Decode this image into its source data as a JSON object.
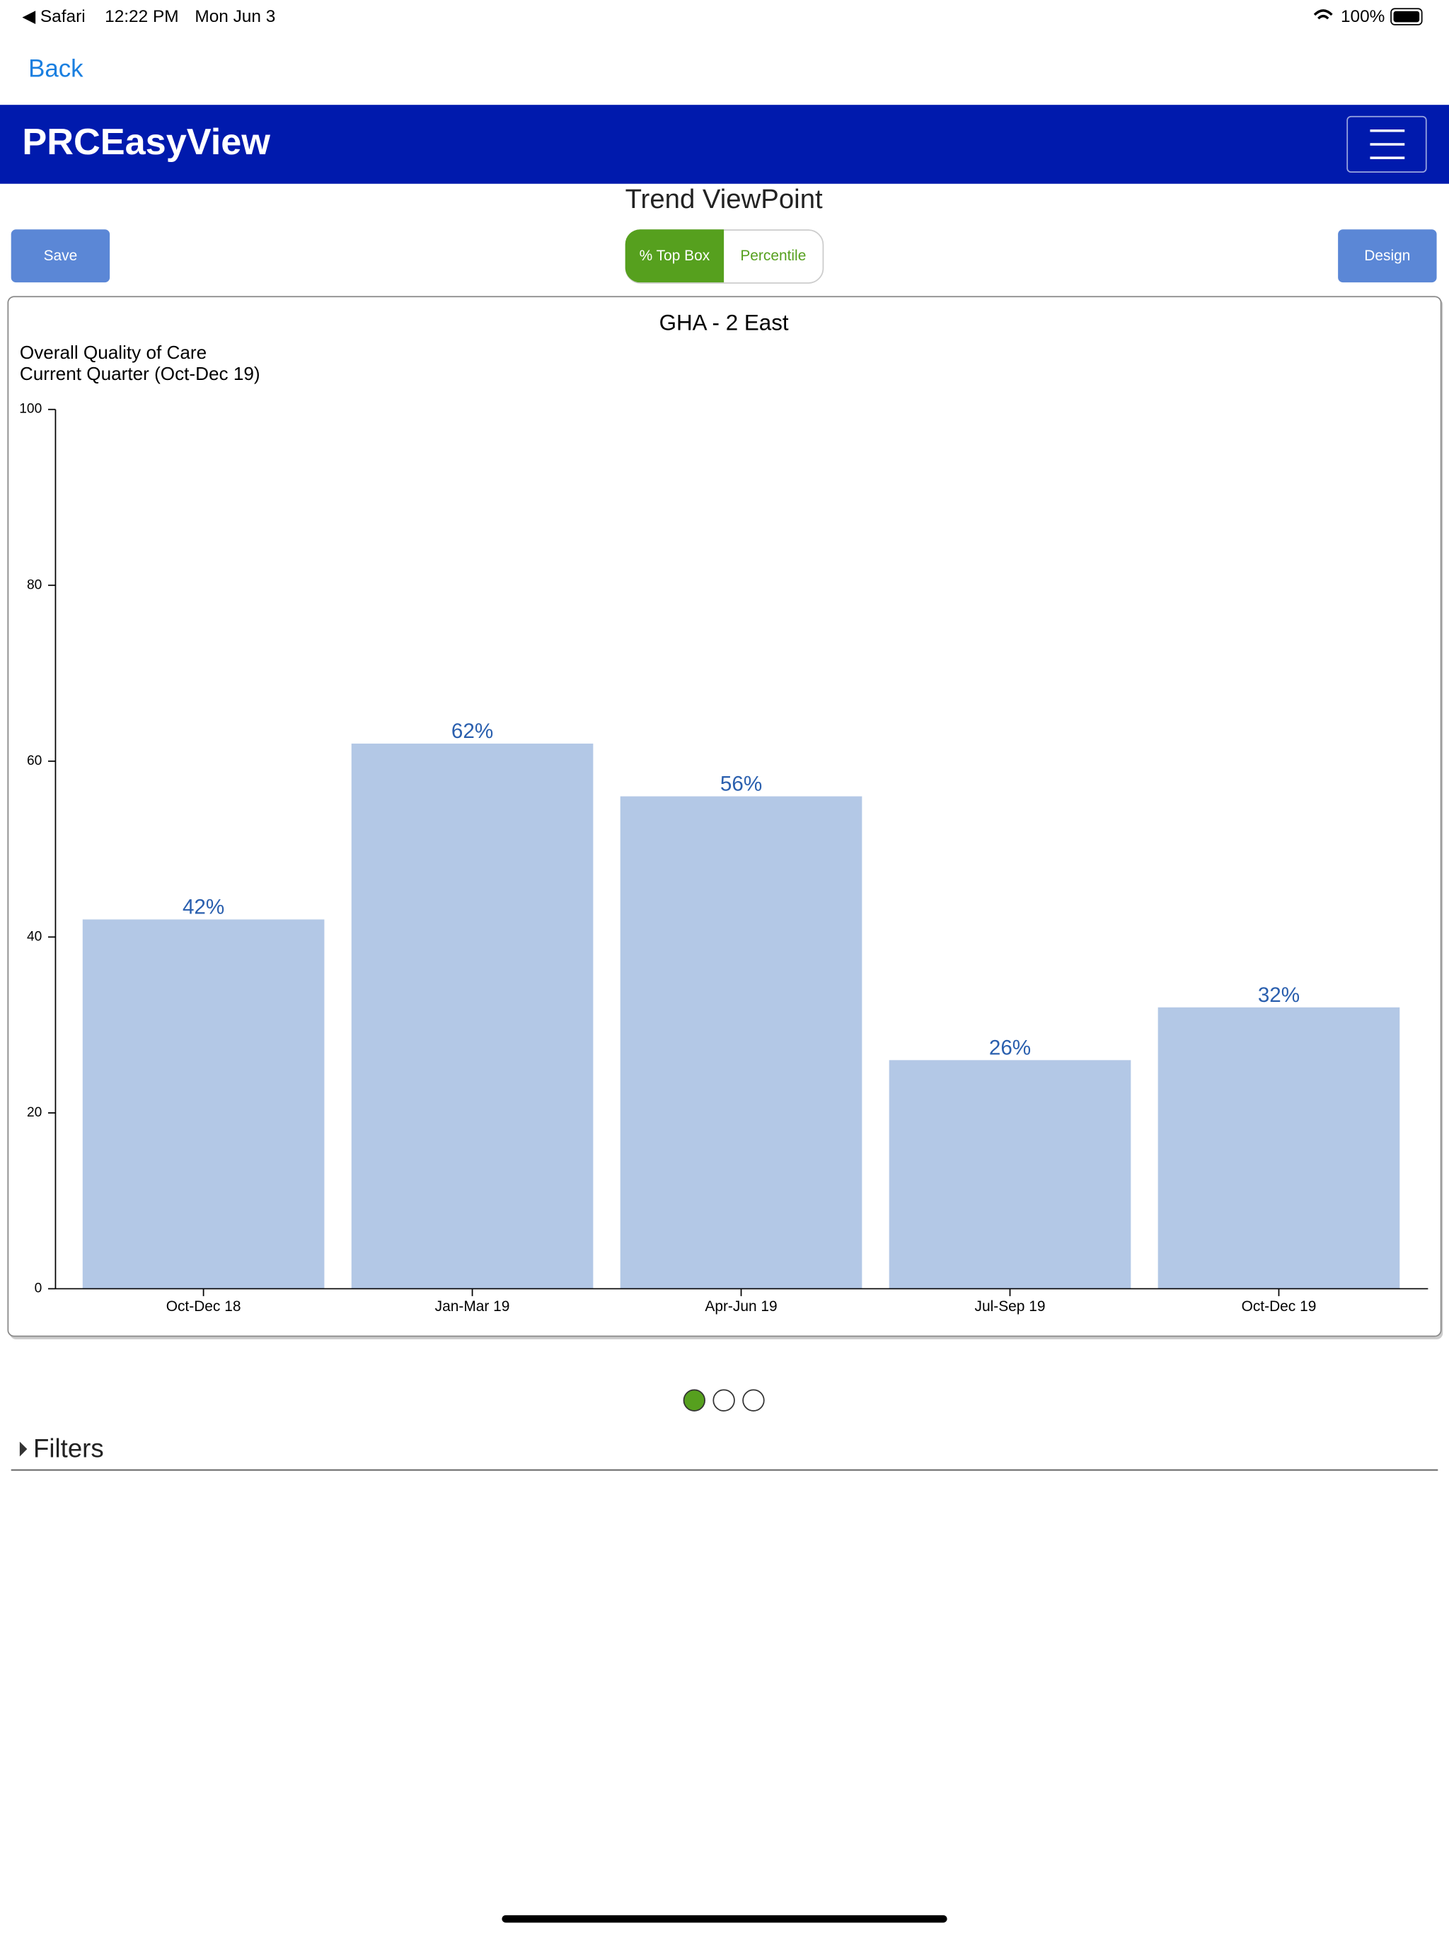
{
  "status_bar": {
    "app": "◀ Safari",
    "time": "12:22 PM",
    "date": "Mon Jun 3",
    "battery": "100%"
  },
  "nav": {
    "back": "Back"
  },
  "header": {
    "logo": "PRCEasyView"
  },
  "page_title": "Trend ViewPoint",
  "buttons": {
    "save": "Save",
    "design": "Design"
  },
  "toggle": [
    "% Top Box",
    "Percentile"
  ],
  "filters": "Filters",
  "chart_data": {
    "type": "bar",
    "title": "GHA - 2 East",
    "subtitle": [
      "Overall Quality of Care",
      "Current Quarter (Oct-Dec 19)"
    ],
    "categories": [
      "Oct-Dec 18",
      "Jan-Mar 19",
      "Apr-Jun 19",
      "Jul-Sep 19",
      "Oct-Dec 19"
    ],
    "values": [
      42,
      62,
      56,
      26,
      32
    ],
    "value_labels": [
      "42%",
      "62%",
      "56%",
      "26%",
      "32%"
    ],
    "color": "#b3c8e6",
    "ylim": [
      0,
      100
    ],
    "yticks": [
      0,
      20,
      40,
      60,
      80,
      100
    ]
  }
}
